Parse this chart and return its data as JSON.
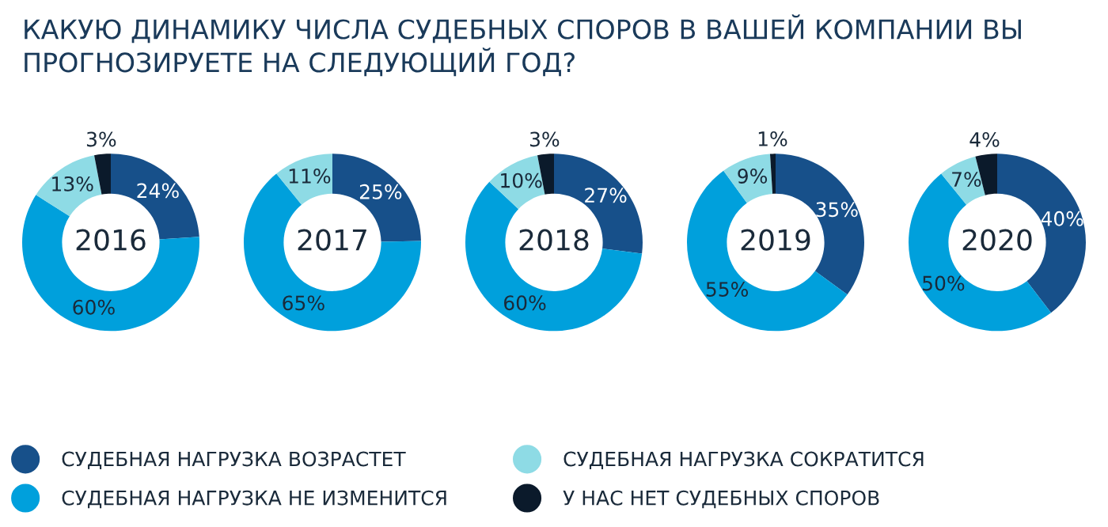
{
  "chart_data": [
    {
      "type": "donut",
      "title": "2016",
      "annotations": [
        "КАКУЮ ДИНАМИКУ ЧИСЛА СУДЕБНЫХ СПОРОВ В ВАШЕЙ КОМПАНИИ ВЫ ПРОГНОЗИРУЕТЕ НА СЛЕДУЮЩИЙ ГОД?"
      ],
      "legend": "bottom",
      "categories": [
        "СУДЕБНАЯ НАГРУЗКА ВОЗРАСТЕТ",
        "СУДЕБНАЯ НАГРУЗКА НЕ ИЗМЕНИТСЯ",
        "СУДЕБНАЯ НАГРУЗКА СОКРАТИТСЯ",
        "У НАС НЕТ СУДЕБНЫХ СПОРОВ"
      ],
      "colors": [
        "#17508a",
        "#00a0dc",
        "#8edbe5",
        "#0b1a2b"
      ],
      "values": [
        24,
        60,
        13,
        3
      ],
      "value_labels": [
        "24%",
        "60%",
        "13%",
        "3%"
      ]
    },
    {
      "type": "donut",
      "title": "2017",
      "colors": [
        "#17508a",
        "#00a0dc",
        "#8edbe5",
        "#0b1a2b"
      ],
      "values": [
        25,
        65,
        11,
        0
      ],
      "value_labels": [
        "25%",
        "65%",
        "11%",
        null
      ]
    },
    {
      "type": "donut",
      "title": "2018",
      "colors": [
        "#17508a",
        "#00a0dc",
        "#8edbe5",
        "#0b1a2b"
      ],
      "values": [
        27,
        60,
        10,
        3
      ],
      "value_labels": [
        "27%",
        "60%",
        "10%",
        "3%"
      ]
    },
    {
      "type": "donut",
      "title": "2019",
      "colors": [
        "#17508a",
        "#00a0dc",
        "#8edbe5",
        "#0b1a2b"
      ],
      "values": [
        35,
        55,
        9,
        1
      ],
      "value_labels": [
        "35%",
        "55%",
        "9%",
        "1%"
      ]
    },
    {
      "type": "donut",
      "title": "2020",
      "colors": [
        "#17508a",
        "#00a0dc",
        "#8edbe5",
        "#0b1a2b"
      ],
      "values": [
        40,
        50,
        7,
        4
      ],
      "value_labels": [
        "40%",
        "50%",
        "7%",
        "4%"
      ]
    }
  ]
}
